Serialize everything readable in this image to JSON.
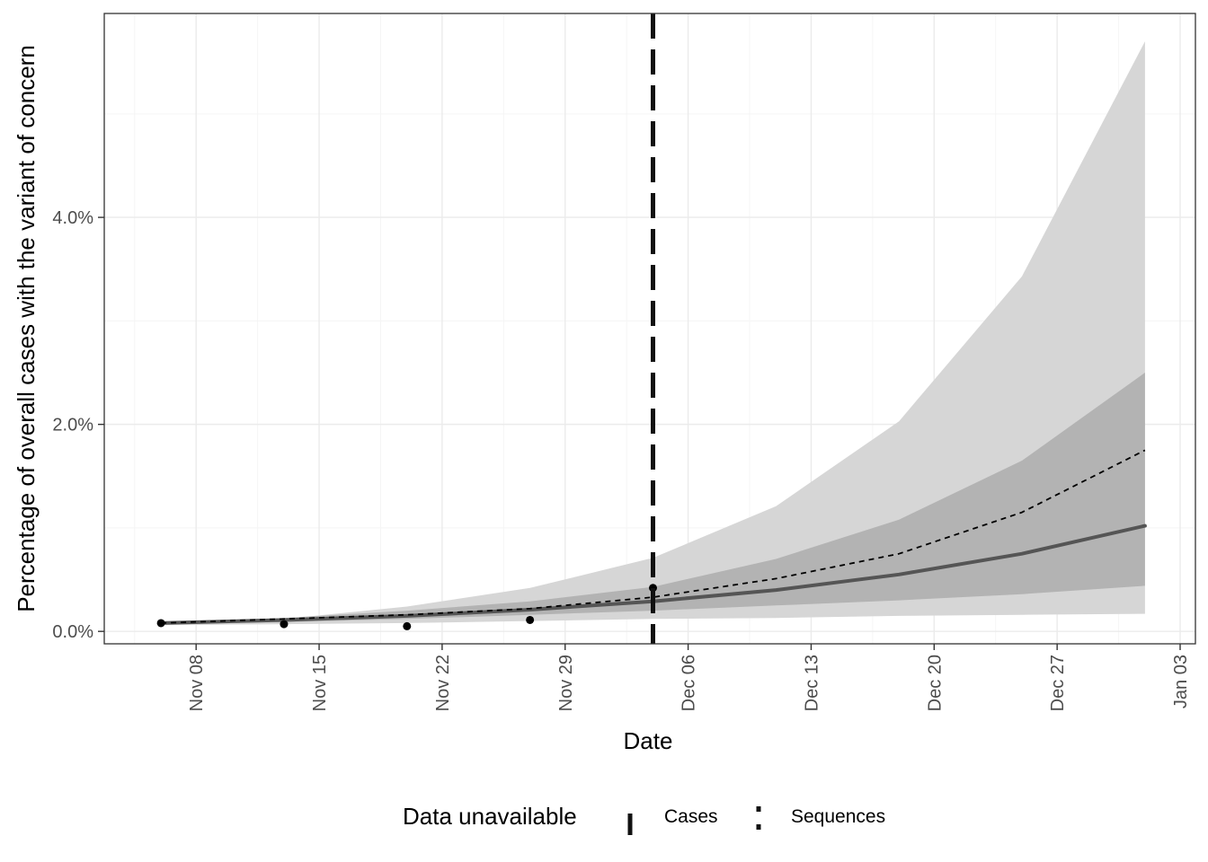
{
  "chart_data": {
    "type": "line",
    "xlabel": "Date",
    "ylabel": "Percentage of overall cases with the variant of concern",
    "x_range": [
      "2020-11-04",
      "2021-01-03"
    ],
    "ylim": [
      -0.0012,
      0.0597
    ],
    "x_ticks": [
      {
        "date": "2020-11-08",
        "label": "Nov 08"
      },
      {
        "date": "2020-11-15",
        "label": "Nov 15"
      },
      {
        "date": "2020-11-22",
        "label": "Nov 22"
      },
      {
        "date": "2020-11-29",
        "label": "Nov 29"
      },
      {
        "date": "2020-12-06",
        "label": "Dec 06"
      },
      {
        "date": "2020-12-13",
        "label": "Dec 13"
      },
      {
        "date": "2020-12-20",
        "label": "Dec 20"
      },
      {
        "date": "2020-12-27",
        "label": "Dec 27"
      },
      {
        "date": "2021-01-03",
        "label": "Jan 03"
      }
    ],
    "y_ticks": [
      {
        "value": 0.0,
        "label": "0.0%"
      },
      {
        "value": 0.02,
        "label": "2.0%"
      },
      {
        "value": 0.04,
        "label": "4.0%"
      }
    ],
    "grid": true,
    "outer_band": [
      {
        "date": "2020-11-06",
        "low": 0.0006,
        "high": 0.0009
      },
      {
        "date": "2020-11-13",
        "low": 0.0007,
        "high": 0.0012
      },
      {
        "date": "2020-11-20",
        "low": 0.0008,
        "high": 0.0024
      },
      {
        "date": "2020-11-27",
        "low": 0.001,
        "high": 0.0042
      },
      {
        "date": "2020-12-04",
        "low": 0.0012,
        "high": 0.0071
      },
      {
        "date": "2020-12-11",
        "low": 0.0013,
        "high": 0.0121
      },
      {
        "date": "2020-12-18",
        "low": 0.0015,
        "high": 0.0203
      },
      {
        "date": "2020-12-25",
        "low": 0.0016,
        "high": 0.0343
      },
      {
        "date": "2021-01-01",
        "low": 0.0017,
        "high": 0.057
      }
    ],
    "inner_band": [
      {
        "date": "2020-11-06",
        "low": 0.0007,
        "high": 0.0009
      },
      {
        "date": "2020-11-13",
        "low": 0.0009,
        "high": 0.0013
      },
      {
        "date": "2020-11-20",
        "low": 0.0012,
        "high": 0.002
      },
      {
        "date": "2020-11-27",
        "low": 0.0016,
        "high": 0.0029
      },
      {
        "date": "2020-12-04",
        "low": 0.002,
        "high": 0.0043
      },
      {
        "date": "2020-12-11",
        "low": 0.0025,
        "high": 0.007
      },
      {
        "date": "2020-12-18",
        "low": 0.003,
        "high": 0.0108
      },
      {
        "date": "2020-12-25",
        "low": 0.0036,
        "high": 0.0165
      },
      {
        "date": "2021-01-01",
        "low": 0.0044,
        "high": 0.025
      }
    ],
    "series": [
      {
        "style": "solid",
        "color": "#555555",
        "points": [
          {
            "date": "2020-11-06",
            "value": 0.0008
          },
          {
            "date": "2020-11-13",
            "value": 0.0011
          },
          {
            "date": "2020-11-20",
            "value": 0.0015
          },
          {
            "date": "2020-11-27",
            "value": 0.0021
          },
          {
            "date": "2020-12-04",
            "value": 0.0029
          },
          {
            "date": "2020-12-11",
            "value": 0.004
          },
          {
            "date": "2020-12-18",
            "value": 0.0055
          },
          {
            "date": "2020-12-25",
            "value": 0.0075
          },
          {
            "date": "2021-01-01",
            "value": 0.0102
          }
        ]
      },
      {
        "style": "dashed",
        "color": "#000000",
        "points": [
          {
            "date": "2020-11-06",
            "value": 0.0008
          },
          {
            "date": "2020-11-13",
            "value": 0.0012
          },
          {
            "date": "2020-11-20",
            "value": 0.0016
          },
          {
            "date": "2020-11-27",
            "value": 0.0022
          },
          {
            "date": "2020-12-04",
            "value": 0.0033
          },
          {
            "date": "2020-12-11",
            "value": 0.0051
          },
          {
            "date": "2020-12-18",
            "value": 0.0075
          },
          {
            "date": "2020-12-25",
            "value": 0.0115
          },
          {
            "date": "2021-01-01",
            "value": 0.0175
          }
        ]
      }
    ],
    "observed_points": [
      {
        "date": "2020-11-06",
        "value": 0.0008
      },
      {
        "date": "2020-11-13",
        "value": 0.0007
      },
      {
        "date": "2020-11-20",
        "value": 0.0005
      },
      {
        "date": "2020-11-27",
        "value": 0.0011
      },
      {
        "date": "2020-12-04",
        "value": 0.0042
      }
    ],
    "vline": {
      "date": "2020-12-04",
      "style": "long-dash",
      "color": "#111111"
    },
    "legend": {
      "title": "Data unavailable",
      "placement": "bottom",
      "entries": [
        {
          "label": "Cases",
          "style": "long-dash"
        },
        {
          "label": "Sequences",
          "style": "dotted"
        }
      ]
    },
    "colors": {
      "outer_band": "#d6d6d6",
      "inner_band": "#b3b3b3",
      "grid_major": "#ebebeb",
      "grid_minor": "#f5f5f5",
      "frame": "#333333",
      "tick_text": "#4d4d4d"
    }
  }
}
